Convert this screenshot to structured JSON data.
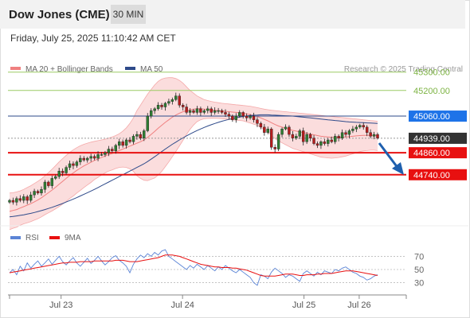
{
  "header": {
    "title": "Dow Jones (CME)",
    "timeframe": "30 MIN",
    "datetime": "Friday, July 25, 2025 11:10:42 AM CET"
  },
  "chart_data": [
    {
      "type": "candlestick",
      "legend": [
        {
          "label": "MA 20 + Bollinger Bands",
          "color": "#f08080"
        },
        {
          "label": "MA 50",
          "color": "#2e4a8a"
        }
      ],
      "copyright": "Research © 2025 Trading Central",
      "ylim": [
        44470,
        45390
      ],
      "x_ticks": [
        {
          "label": "Jul 23",
          "x": 14
        },
        {
          "label": "Jul 24",
          "x": 47
        },
        {
          "label": "Jul 25",
          "x": 80
        },
        {
          "label": "Jul 26",
          "x": 95
        }
      ],
      "levels": [
        {
          "label": "45300.00",
          "value": 45300,
          "role": "resistance",
          "color": "#9ccc65"
        },
        {
          "label": "45200.00",
          "value": 45200,
          "role": "resistance",
          "color": "#9ccc65"
        },
        {
          "label": "45060.00",
          "value": 45060,
          "role": "pivot",
          "color": "#1e73e8"
        },
        {
          "label": "44939.00",
          "value": 44939,
          "role": "last",
          "color": "#333333"
        },
        {
          "label": "44860.00",
          "value": 44860,
          "role": "support",
          "color": "#e81010"
        },
        {
          "label": "44740.00",
          "value": 44740,
          "role": "support",
          "color": "#e81010"
        }
      ],
      "close": [
        44600,
        44590,
        44610,
        44600,
        44620,
        44600,
        44630,
        44650,
        44640,
        44660,
        44700,
        44680,
        44720,
        44730,
        44760,
        44750,
        44780,
        44800,
        44790,
        44810,
        44830,
        44820,
        44830,
        44840,
        44830,
        44850,
        44850,
        44860,
        44880,
        44870,
        44900,
        44920,
        44900,
        44930,
        44920,
        44950,
        44960,
        44940,
        44980,
        45060,
        45090,
        45100,
        45120,
        45110,
        45130,
        45140,
        45150,
        45170,
        45120,
        45110,
        45080,
        45090,
        45080,
        45100,
        45080,
        45090,
        45100,
        45080,
        45090,
        45090,
        45080,
        45070,
        45060,
        45040,
        45060,
        45080,
        45060,
        45050,
        45060,
        45040,
        45020,
        45000,
        44970,
        44990,
        44890,
        44880,
        44960,
        44990,
        45000,
        44960,
        44940,
        44950,
        44980,
        44920,
        44960,
        44940,
        44910,
        44900,
        44920,
        44910,
        44930,
        44920,
        44950,
        44940,
        44970,
        44960,
        44980,
        44990,
        45000,
        45010,
        45000,
        44970,
        44950,
        44960,
        44940
      ],
      "ma20": [
        44540,
        44545,
        44550,
        44558,
        44566,
        44574,
        44582,
        44592,
        44602,
        44614,
        44628,
        44642,
        44656,
        44672,
        44688,
        44704,
        44720,
        44736,
        44750,
        44764,
        44776,
        44788,
        44798,
        44808,
        44818,
        44826,
        44834,
        44842,
        44850,
        44856,
        44864,
        44872,
        44880,
        44888,
        44896,
        44904,
        44912,
        44920,
        44930,
        44944,
        44960,
        44976,
        44994,
        45010,
        45026,
        45040,
        45054,
        45066,
        45076,
        45084,
        45090,
        45094,
        45098,
        45100,
        45100,
        45098,
        45096,
        45094,
        45092,
        45090,
        45088,
        45086,
        45084,
        45082,
        45080,
        45078,
        45076,
        45072,
        45068,
        45063,
        45058,
        45050,
        45042,
        45034,
        45024,
        45014,
        45006,
        45000,
        44994,
        44988,
        44982,
        44978,
        44974,
        44970,
        44966,
        44962,
        44958,
        44954,
        44950,
        44948,
        44946,
        44944,
        44944,
        44944,
        44945,
        44946,
        44948,
        44950,
        44952,
        44954,
        44955,
        44955,
        44955,
        44954,
        44952
      ],
      "bollinger_upper": [
        44640,
        44642,
        44646,
        44652,
        44660,
        44670,
        44680,
        44692,
        44704,
        44718,
        44734,
        44752,
        44770,
        44790,
        44810,
        44828,
        44846,
        44862,
        44876,
        44888,
        44898,
        44906,
        44912,
        44918,
        44922,
        44926,
        44930,
        44934,
        44940,
        44946,
        44954,
        44964,
        44978,
        44996,
        45020,
        45050,
        45090,
        45120,
        45150,
        45180,
        45205,
        45230,
        45250,
        45262,
        45268,
        45270,
        45270,
        45265,
        45255,
        45240,
        45220,
        45200,
        45185,
        45170,
        45160,
        45150,
        45145,
        45140,
        45136,
        45133,
        45130,
        45128,
        45126,
        45124,
        45122,
        45120,
        45118,
        45116,
        45114,
        45110,
        45106,
        45102,
        45098,
        45095,
        45092,
        45090,
        45088,
        45086,
        45084,
        45082,
        45080,
        45078,
        45076,
        45074,
        45072,
        45070,
        45068,
        45066,
        45064,
        45062,
        45060,
        45058,
        45056,
        45054,
        45052,
        45050,
        45048,
        45046,
        45044,
        45042,
        45040,
        45038,
        45036,
        45034,
        45032
      ],
      "bollinger_lower": [
        44440,
        44448,
        44454,
        44464,
        44472,
        44478,
        44484,
        44492,
        44500,
        44510,
        44522,
        44532,
        44542,
        44554,
        44566,
        44580,
        44594,
        44610,
        44624,
        44640,
        44654,
        44670,
        44684,
        44698,
        44714,
        44726,
        44738,
        44750,
        44760,
        44766,
        44774,
        44780,
        44782,
        44780,
        44772,
        44758,
        44734,
        44720,
        44710,
        44708,
        44715,
        44722,
        44738,
        44758,
        44784,
        44810,
        44838,
        44867,
        44897,
        44928,
        44960,
        44988,
        45011,
        45030,
        45040,
        45046,
        45047,
        45048,
        45048,
        45047,
        45046,
        45044,
        45042,
        45040,
        45038,
        45036,
        45034,
        45028,
        45022,
        45016,
        45010,
        44998,
        44986,
        44973,
        44956,
        44938,
        44924,
        44914,
        44904,
        44894,
        44884,
        44878,
        44872,
        44866,
        44860,
        44854,
        44848,
        44842,
        44836,
        44834,
        44832,
        44830,
        44832,
        44834,
        44838,
        44842,
        44848,
        44854,
        44860,
        44866,
        44870,
        44872,
        44874,
        44874,
        44872
      ],
      "ma50": [
        44510,
        44512,
        44515,
        44518,
        44521,
        44525,
        44529,
        44534,
        44539,
        44544,
        44550,
        44556,
        44562,
        44569,
        44576,
        44583,
        44591,
        44599,
        44607,
        44615,
        44624,
        44633,
        44642,
        44651,
        44660,
        44670,
        44680,
        44690,
        44700,
        44710,
        44720,
        44730,
        44740,
        44750,
        44760,
        44770,
        44780,
        44790,
        44800,
        44812,
        44825,
        44838,
        44852,
        44866,
        44880,
        44893,
        44906,
        44918,
        44930,
        44941,
        44952,
        44962,
        44972,
        44981,
        44990,
        44998,
        45006,
        45013,
        45020,
        45026,
        45032,
        45037,
        45042,
        45047,
        45051,
        45055,
        45058,
        45061,
        45063,
        45065,
        45066,
        45067,
        45067,
        45067,
        45066,
        45065,
        45064,
        45063,
        45062,
        45061,
        45060,
        45058,
        45056,
        45054,
        45052,
        45050,
        45048,
        45046,
        45044,
        45042,
        45040,
        45038,
        45036,
        45034,
        45032,
        45030,
        45028,
        45027,
        45026,
        45025,
        45024,
        45023,
        45022,
        45021,
        45020
      ]
    },
    {
      "type": "line",
      "legend": [
        {
          "label": "RSI",
          "color": "#5b84d6"
        },
        {
          "label": "9MA",
          "color": "#e81010"
        }
      ],
      "ylim": [
        15,
        85
      ],
      "y_ticks": [
        {
          "label": "70",
          "value": 70
        },
        {
          "label": "50",
          "value": 50
        },
        {
          "label": "30",
          "value": 30
        }
      ],
      "rsi": [
        45,
        50,
        42,
        55,
        48,
        60,
        52,
        58,
        63,
        55,
        60,
        66,
        58,
        64,
        70,
        62,
        57,
        63,
        68,
        60,
        55,
        61,
        67,
        59,
        64,
        70,
        63,
        57,
        62,
        68,
        71,
        64,
        60,
        55,
        45,
        58,
        66,
        72,
        68,
        74,
        70,
        76,
        72,
        78,
        80,
        70,
        66,
        62,
        58,
        54,
        50,
        56,
        52,
        58,
        54,
        50,
        56,
        52,
        48,
        54,
        50,
        56,
        52,
        48,
        45,
        50,
        46,
        42,
        38,
        30,
        26,
        42,
        40,
        36,
        46,
        52,
        48,
        44,
        38,
        42,
        40,
        36,
        32,
        44,
        48,
        44,
        40,
        46,
        42,
        48,
        46,
        44,
        50,
        48,
        52,
        54,
        50,
        46,
        44,
        40,
        38,
        34,
        36,
        40,
        42
      ],
      "ma9": [
        45,
        46,
        47,
        48,
        49,
        50,
        51,
        52,
        53,
        54,
        55,
        56,
        57,
        58,
        59,
        60,
        60,
        61,
        61,
        61,
        62,
        62,
        62,
        62,
        63,
        63,
        63,
        63,
        63,
        63,
        64,
        64,
        64,
        63,
        62,
        62,
        62,
        63,
        64,
        65,
        66,
        67,
        68,
        70,
        72,
        72,
        72,
        71,
        70,
        68,
        66,
        64,
        62,
        60,
        58,
        57,
        56,
        55,
        54,
        54,
        53,
        53,
        53,
        52,
        52,
        51,
        50,
        49,
        47,
        45,
        43,
        41,
        40,
        40,
        40,
        40,
        41,
        42,
        43,
        43,
        43,
        42,
        41,
        41,
        42,
        42,
        42,
        43,
        43,
        44,
        44,
        44,
        45,
        46,
        47,
        48,
        48,
        48,
        47,
        46,
        45,
        44,
        43,
        42,
        41
      ]
    }
  ]
}
